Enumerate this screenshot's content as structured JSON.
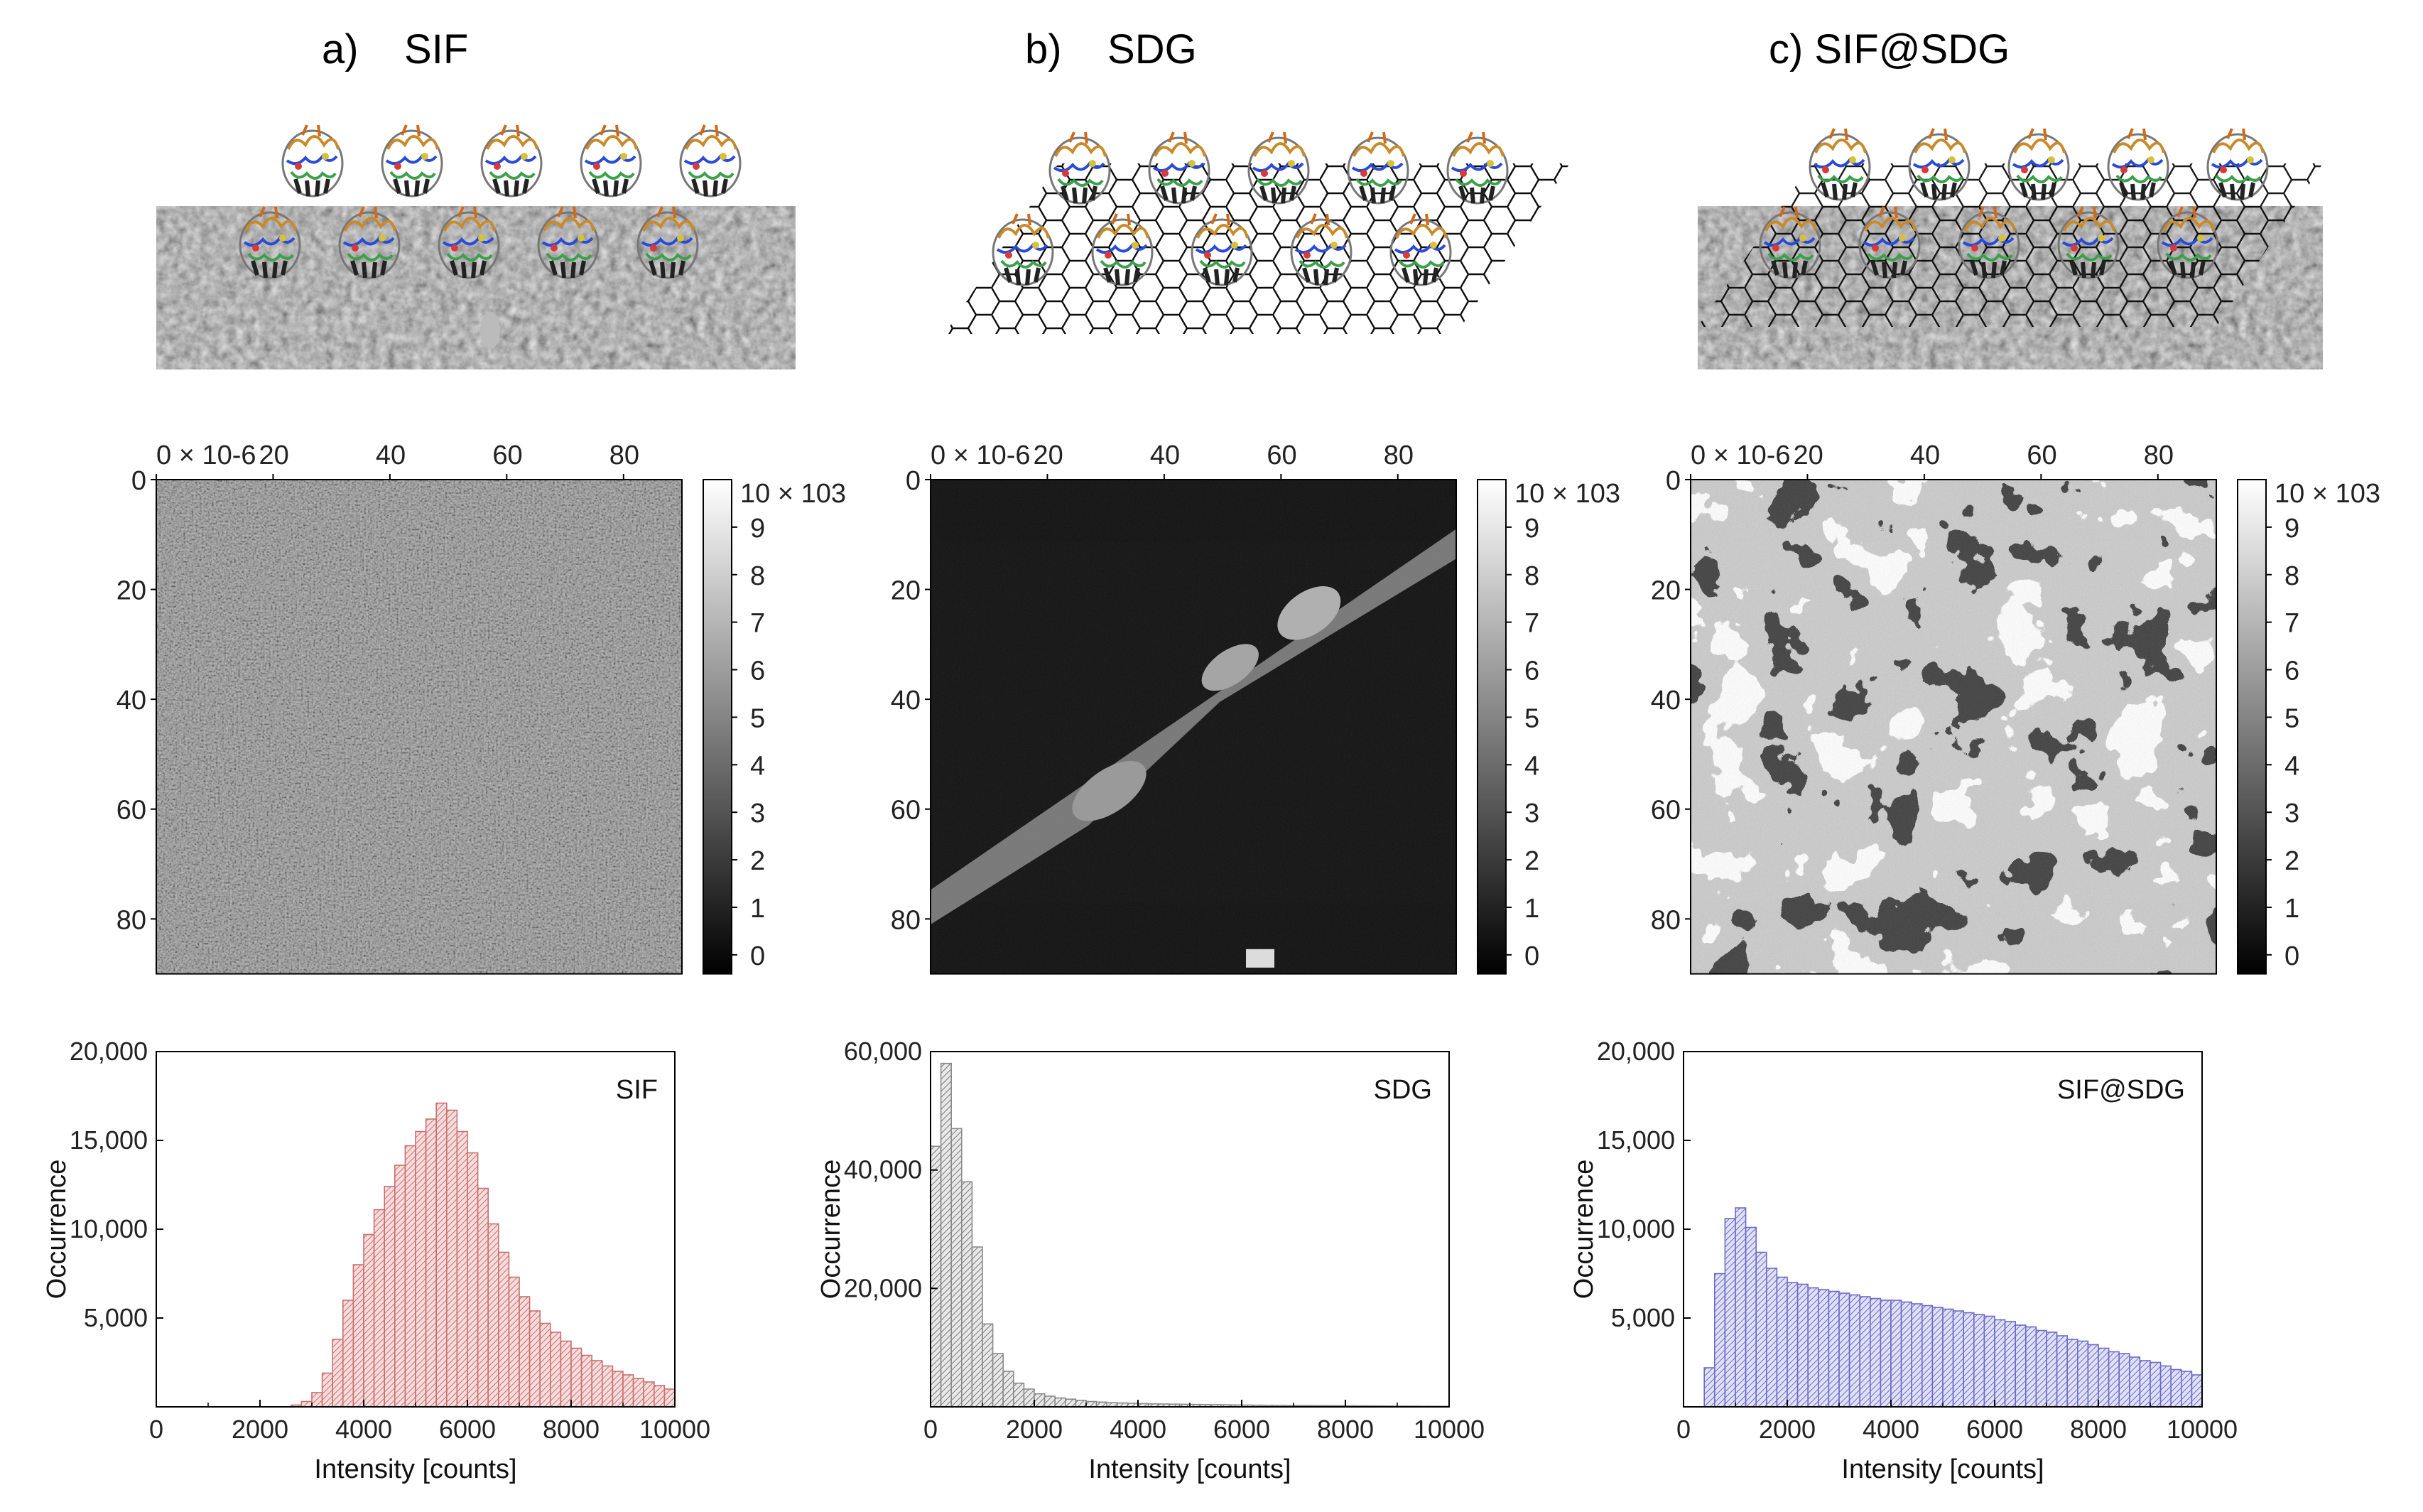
{
  "panels": [
    {
      "id": "a",
      "title": "a)    SIF",
      "illustration": "sif-protein-layer",
      "image": {
        "x_ticks": [
          "0 × 10-6",
          "20",
          "40",
          "60",
          "80"
        ],
        "y_ticks": [
          "0",
          "20",
          "40",
          "60",
          "80"
        ],
        "colorbar_top": "10 × 103",
        "colorbar_ticks": [
          "9",
          "8",
          "7",
          "6",
          "5",
          "4",
          "3",
          "2",
          "1",
          "0"
        ],
        "texture": "uniform-speckle"
      },
      "chart_data": {
        "type": "bar",
        "title": "SIF",
        "xlabel": "Intensity [counts]",
        "ylabel": "Occurrence",
        "xlim": [
          0,
          10000
        ],
        "ylim": [
          0,
          20000
        ],
        "x_ticks": [
          "0",
          "2000",
          "4000",
          "6000",
          "8000",
          "10000"
        ],
        "y_ticks": [
          "5,000",
          "10,000",
          "15,000",
          "20,000"
        ],
        "bin_width": 200,
        "color": "#c9706e",
        "bin_start": [
          0,
          200,
          400,
          600,
          800,
          1000,
          1200,
          1400,
          1600,
          1800,
          2000,
          2200,
          2400,
          2600,
          2800,
          3000,
          3200,
          3400,
          3600,
          3800,
          4000,
          4200,
          4400,
          4600,
          4800,
          5000,
          5200,
          5400,
          5600,
          5800,
          6000,
          6200,
          6400,
          6600,
          6800,
          7000,
          7200,
          7400,
          7600,
          7800,
          8000,
          8200,
          8400,
          8600,
          8800,
          9000,
          9200,
          9400,
          9600,
          9800
        ],
        "values": [
          0,
          0,
          0,
          0,
          0,
          0,
          0,
          0,
          0,
          0,
          0,
          0,
          0,
          100,
          300,
          800,
          1900,
          3800,
          6000,
          8000,
          9700,
          11100,
          12400,
          13600,
          14700,
          15500,
          16200,
          17100,
          16700,
          15500,
          14300,
          12300,
          10300,
          8700,
          7300,
          6200,
          5400,
          4700,
          4200,
          3700,
          3300,
          2900,
          2600,
          2300,
          2000,
          1800,
          1600,
          1400,
          1200,
          1000
        ]
      }
    },
    {
      "id": "b",
      "title": "b)    SDG",
      "illustration": "sif-on-graphene-lattice",
      "image": {
        "x_ticks": [
          "0 × 10-6",
          "20",
          "40",
          "60",
          "80"
        ],
        "y_ticks": [
          "0",
          "20",
          "40",
          "60",
          "80"
        ],
        "colorbar_top": "10 × 103",
        "colorbar_ticks": [
          "9",
          "8",
          "7",
          "6",
          "5",
          "4",
          "3",
          "2",
          "1",
          "0"
        ],
        "texture": "dark-with-diagonal-flake"
      },
      "chart_data": {
        "type": "bar",
        "title": "SDG",
        "xlabel": "Intensity [counts]",
        "ylabel": "Occurrence",
        "xlim": [
          0,
          10000
        ],
        "ylim": [
          0,
          60000
        ],
        "x_ticks": [
          "0",
          "2000",
          "4000",
          "6000",
          "8000",
          "10000"
        ],
        "y_ticks": [
          "20,000",
          "40,000",
          "60,000"
        ],
        "bin_width": 200,
        "color": "#8a8a8a",
        "bin_start": [
          0,
          200,
          400,
          600,
          800,
          1000,
          1200,
          1400,
          1600,
          1800,
          2000,
          2200,
          2400,
          2600,
          2800,
          3000,
          3200,
          3400,
          3600,
          3800,
          4000,
          4200,
          4400,
          4600,
          4800,
          5000,
          5200,
          5400,
          5600,
          5800,
          6000,
          6200,
          6400,
          6600,
          6800,
          7000,
          7200,
          7400,
          7600,
          7800,
          8000,
          8200,
          8400,
          8600,
          8800,
          9000,
          9200,
          9400,
          9600,
          9800
        ],
        "values": [
          44000,
          58000,
          47000,
          38000,
          27000,
          14000,
          9000,
          6000,
          4000,
          3000,
          2200,
          1800,
          1500,
          1300,
          1100,
          900,
          800,
          700,
          650,
          600,
          550,
          500,
          480,
          450,
          430,
          400,
          380,
          360,
          340,
          320,
          300,
          280,
          260,
          250,
          240,
          230,
          220,
          210,
          200,
          190,
          180,
          170,
          160,
          150,
          140,
          130,
          120,
          110,
          100,
          90
        ]
      }
    },
    {
      "id": "c",
      "title": "c) SIF@SDG",
      "illustration": "sif-on-graphene-over-textured-surface",
      "image": {
        "x_ticks": [
          "0 × 10-6",
          "20",
          "40",
          "60",
          "80"
        ],
        "y_ticks": [
          "0",
          "20",
          "40",
          "60",
          "80"
        ],
        "colorbar_top": "10 × 103",
        "colorbar_ticks": [
          "9",
          "8",
          "7",
          "6",
          "5",
          "4",
          "3",
          "2",
          "1",
          "0"
        ],
        "texture": "high-contrast-patches"
      },
      "chart_data": {
        "type": "bar",
        "title": "SIF@SDG",
        "xlabel": "Intensity [counts]",
        "ylabel": "Occurrence",
        "xlim": [
          0,
          10000
        ],
        "ylim": [
          0,
          20000
        ],
        "x_ticks": [
          "0",
          "2000",
          "4000",
          "6000",
          "8000",
          "10000"
        ],
        "y_ticks": [
          "5,000",
          "10,000",
          "15,000",
          "20,000"
        ],
        "bin_width": 200,
        "color": "#6b6bc8",
        "bin_start": [
          0,
          200,
          400,
          600,
          800,
          1000,
          1200,
          1400,
          1600,
          1800,
          2000,
          2200,
          2400,
          2600,
          2800,
          3000,
          3200,
          3400,
          3600,
          3800,
          4000,
          4200,
          4400,
          4600,
          4800,
          5000,
          5200,
          5400,
          5600,
          5800,
          6000,
          6200,
          6400,
          6600,
          6800,
          7000,
          7200,
          7400,
          7600,
          7800,
          8000,
          8200,
          8400,
          8600,
          8800,
          9000,
          9200,
          9400,
          9600,
          9800
        ],
        "values": [
          0,
          0,
          2200,
          7500,
          10600,
          11200,
          10100,
          8700,
          7800,
          7300,
          7000,
          6900,
          6700,
          6600,
          6500,
          6400,
          6300,
          6200,
          6100,
          6000,
          6000,
          5900,
          5800,
          5700,
          5600,
          5500,
          5400,
          5300,
          5200,
          5100,
          4900,
          4800,
          4600,
          4500,
          4300,
          4200,
          4000,
          3800,
          3700,
          3500,
          3300,
          3100,
          3000,
          2800,
          2600,
          2500,
          2300,
          2100,
          2000,
          1800
        ]
      }
    }
  ]
}
